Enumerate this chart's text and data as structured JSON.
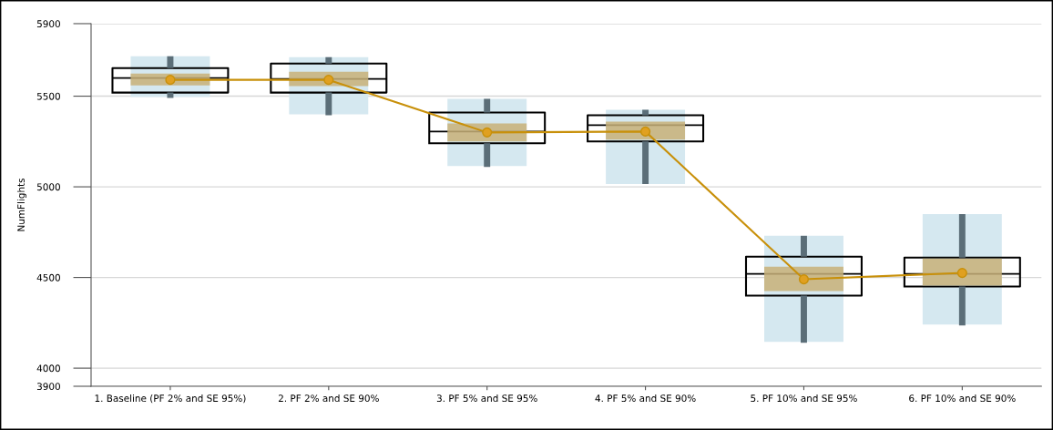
{
  "chart_data": {
    "type": "box",
    "ylabel": "NumFlights",
    "categories": [
      "1. Baseline (PF 2% and SE 95%)",
      "2. PF 2% and SE 90%",
      "3. PF 5% and SE 95%",
      "4. PF 5% and SE 90%",
      "5. PF 10% and SE 95%",
      "6. PF 10% and SE 90%"
    ],
    "ylim": [
      3900,
      5900
    ],
    "yticks": [
      3900,
      4000,
      4500,
      5000,
      5500,
      5900
    ],
    "grid": "y",
    "series": [
      {
        "type": "bar",
        "color": "#d5e8f0",
        "base": [
          5495,
          5400,
          5115,
          5015,
          4145,
          4240
        ],
        "values": [
          225,
          315,
          370,
          410,
          585,
          610
        ]
      },
      {
        "color": "#000000",
        "boxes": [
          {
            "low": 5490,
            "q1": 5520,
            "median": 5600,
            "q3": 5655,
            "high": 5720
          },
          {
            "low": 5395,
            "q1": 5520,
            "median": 5595,
            "q3": 5680,
            "high": 5715
          },
          {
            "low": 5110,
            "q1": 5240,
            "median": 5305,
            "q3": 5410,
            "high": 5485
          },
          {
            "low": 5015,
            "q1": 5250,
            "median": 5340,
            "q3": 5395,
            "high": 5425
          },
          {
            "low": 4140,
            "q1": 4400,
            "median": 4520,
            "q3": 4615,
            "high": 4730
          },
          {
            "low": 4235,
            "q1": 4450,
            "median": 4520,
            "q3": 4610,
            "high": 4850
          }
        ]
      },
      {
        "type": "bar",
        "color": "#c8b078",
        "base": [
          5560,
          5555,
          5250,
          5260,
          4425,
          4455
        ],
        "values": [
          65,
          80,
          100,
          100,
          135,
          150
        ]
      },
      {
        "type": "line",
        "color": "#c8900a",
        "marker": "circle",
        "values": [
          5590,
          5590,
          5300,
          5305,
          4490,
          4525
        ]
      }
    ]
  }
}
